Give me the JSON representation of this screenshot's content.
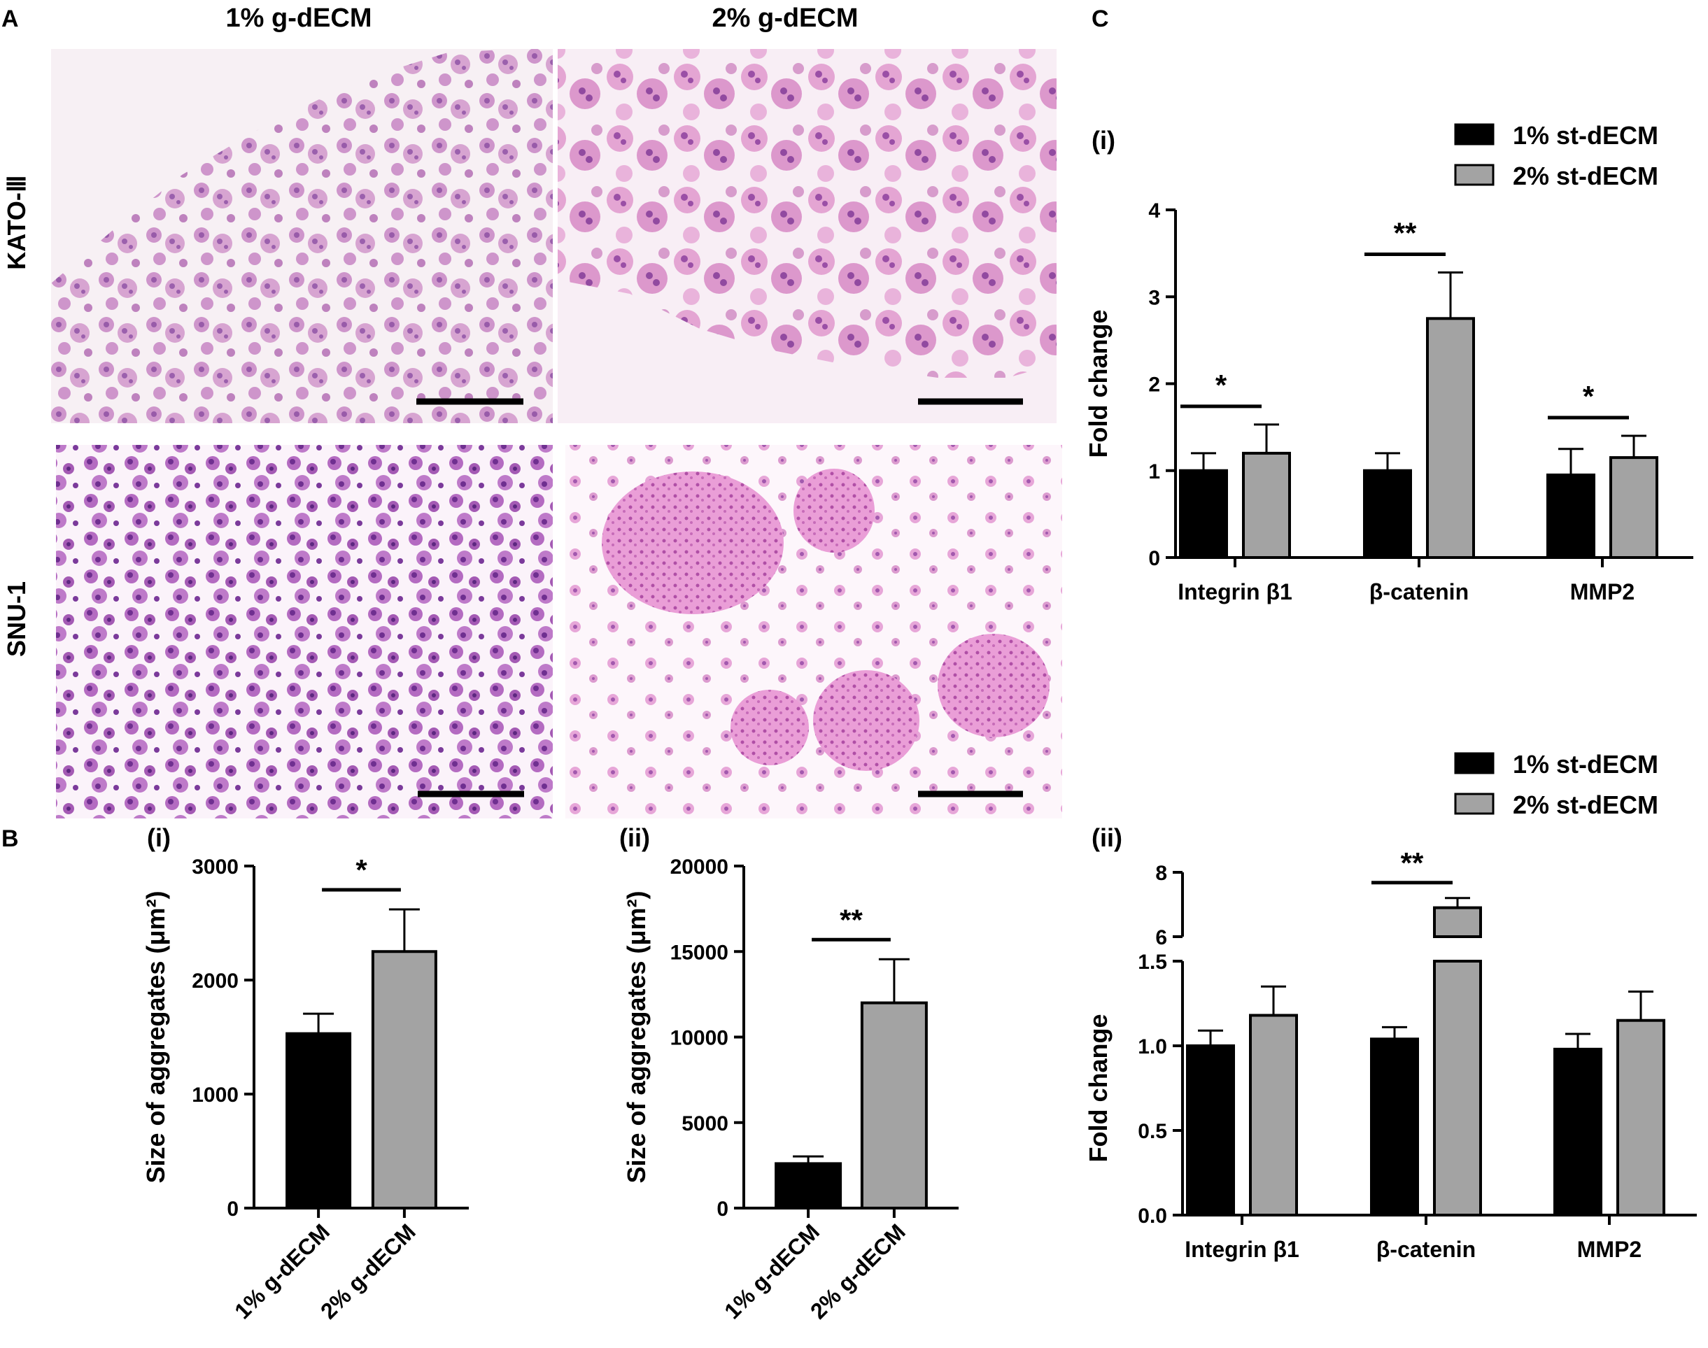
{
  "panels": {
    "A": "A",
    "B": "B",
    "C": "C"
  },
  "panel_a": {
    "columns": [
      "1% g-dECM",
      "2% g-dECM"
    ],
    "rows": [
      "KATO-Ⅲ",
      "SNU-1"
    ],
    "colors": {
      "cell": "#c77bc2",
      "dense": "#7d3a98",
      "background": "#f7eef5",
      "pink": "#e6a3cf"
    }
  },
  "chart_data": [
    {
      "id": "Bi",
      "type": "bar",
      "panel_label": "(i)",
      "categories": [
        "1% g-dECM",
        "2% g-dECM"
      ],
      "values": [
        1530,
        2250
      ],
      "errors": [
        175,
        370
      ],
      "colors": [
        "#000000",
        "#a3a3a3"
      ],
      "ylabel": "Size of aggregates (μm²)",
      "ylim": [
        0,
        3000
      ],
      "yticks": [
        0,
        1000,
        2000,
        3000
      ],
      "significance": [
        {
          "between": [
            0,
            1
          ],
          "label": "*"
        }
      ]
    },
    {
      "id": "Bii",
      "type": "bar",
      "panel_label": "(ii)",
      "categories": [
        "1% g-dECM",
        "2% g-dECM"
      ],
      "values": [
        2600,
        12000
      ],
      "errors": [
        420,
        2550
      ],
      "colors": [
        "#000000",
        "#a3a3a3"
      ],
      "ylabel": "Size of aggregates (μm²)",
      "ylim": [
        0,
        20000
      ],
      "yticks": [
        0,
        5000,
        10000,
        15000,
        20000
      ],
      "significance": [
        {
          "between": [
            0,
            1
          ],
          "label": "**"
        }
      ]
    },
    {
      "id": "Ci",
      "type": "bar",
      "panel_label": "(i)",
      "categories": [
        "Integrin β1",
        "β-catenin",
        "MMP2"
      ],
      "series": [
        {
          "name": "1% st-dECM",
          "values": [
            1.0,
            1.0,
            0.95
          ],
          "errors": [
            0.2,
            0.2,
            0.3
          ],
          "color": "#000000"
        },
        {
          "name": "2% st-dECM",
          "values": [
            1.2,
            2.75,
            1.15
          ],
          "errors": [
            0.33,
            0.53,
            0.25
          ],
          "color": "#a3a3a3"
        }
      ],
      "ylabel": "Fold change",
      "ylim": [
        0,
        4
      ],
      "yticks": [
        0,
        1,
        2,
        3,
        4
      ],
      "legend": "top-right",
      "significance": [
        {
          "category": 0,
          "label": "*"
        },
        {
          "category": 1,
          "label": "**"
        },
        {
          "category": 2,
          "label": "*"
        }
      ]
    },
    {
      "id": "Cii",
      "type": "bar",
      "panel_label": "(ii)",
      "categories": [
        "Integrin β1",
        "β-catenin",
        "MMP2"
      ],
      "series": [
        {
          "name": "1% st-dECM",
          "values": [
            1.0,
            1.04,
            0.98
          ],
          "errors": [
            0.09,
            0.07,
            0.09
          ],
          "color": "#000000"
        },
        {
          "name": "2% st-dECM",
          "values": [
            1.18,
            6.9,
            1.15
          ],
          "errors": [
            0.17,
            0.3,
            0.17
          ],
          "color": "#a3a3a3"
        }
      ],
      "ylabel": "Fold change",
      "ylim": [
        0,
        8
      ],
      "axis_break": [
        1.5,
        6
      ],
      "yticks_lower": [
        "0.0",
        "0.5",
        "1.0",
        "1.5"
      ],
      "yticks_upper": [
        "6",
        "8"
      ],
      "legend": "top-right",
      "significance": [
        {
          "category": 1,
          "label": "**"
        }
      ]
    }
  ]
}
